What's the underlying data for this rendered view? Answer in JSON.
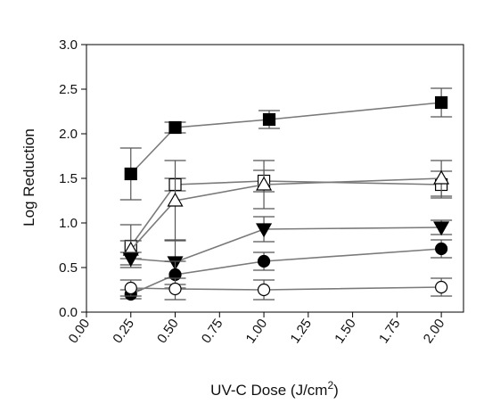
{
  "chart_data": {
    "type": "line",
    "title": "",
    "xlabel": {
      "main": "UV-C Dose (J/cm",
      "sup": "2",
      "close": ")"
    },
    "ylabel": "Log Reduction",
    "xlim": [
      0,
      2.125
    ],
    "ylim": [
      0,
      3.0
    ],
    "xticks": [
      "0.00",
      "0.25",
      "0.50",
      "0.75",
      "1.00",
      "1.25",
      "1.50",
      "1.75",
      "2.00"
    ],
    "yticks": [
      "0.0",
      "0.5",
      "1.0",
      "1.5",
      "2.0",
      "2.5",
      "3.0"
    ],
    "grid": false,
    "legend": "none",
    "series": [
      {
        "marker": "filled-square",
        "points": [
          {
            "x": 0.25,
            "y": 1.55,
            "err": 0.29
          },
          {
            "x": 0.5,
            "y": 2.07,
            "err": 0.06
          },
          {
            "x": 1.03,
            "y": 2.16,
            "err": 0.1
          },
          {
            "x": 2.0,
            "y": 2.35,
            "err": 0.16
          }
        ]
      },
      {
        "marker": "open-square",
        "points": [
          {
            "x": 0.25,
            "y": 0.74,
            "err": 0.24
          },
          {
            "x": 0.5,
            "y": 1.43,
            "err": 0.07
          },
          {
            "x": 1.0,
            "y": 1.47,
            "err": 0.12
          },
          {
            "x": 2.0,
            "y": 1.43,
            "err": 0.15
          }
        ]
      },
      {
        "marker": "open-triangle",
        "points": [
          {
            "x": 0.25,
            "y": 0.7,
            "err": 0.1
          },
          {
            "x": 0.5,
            "y": 1.25,
            "err": 0.45
          },
          {
            "x": 1.0,
            "y": 1.43,
            "err": 0.27
          },
          {
            "x": 2.0,
            "y": 1.5,
            "err": 0.2
          }
        ]
      },
      {
        "marker": "filled-triangle-down",
        "points": [
          {
            "x": 0.25,
            "y": 0.6,
            "err": 0.07
          },
          {
            "x": 0.5,
            "y": 0.56,
            "err": 0.25
          },
          {
            "x": 1.0,
            "y": 0.93,
            "err": 0.14
          },
          {
            "x": 2.0,
            "y": 0.95,
            "err": 0.08
          }
        ]
      },
      {
        "marker": "filled-circle",
        "points": [
          {
            "x": 0.25,
            "y": 0.2,
            "err": 0.05
          },
          {
            "x": 0.5,
            "y": 0.42,
            "err": 0.15
          },
          {
            "x": 1.0,
            "y": 0.57,
            "err": 0.1
          },
          {
            "x": 2.0,
            "y": 0.71,
            "err": 0.1
          }
        ]
      },
      {
        "marker": "open-circle",
        "points": [
          {
            "x": 0.25,
            "y": 0.27,
            "err": 0.09
          },
          {
            "x": 0.5,
            "y": 0.26,
            "err": 0.12
          },
          {
            "x": 1.0,
            "y": 0.25,
            "err": 0.11
          },
          {
            "x": 2.0,
            "y": 0.28,
            "err": 0.1
          }
        ]
      }
    ],
    "colors": {
      "line": "#7a7a7a",
      "marker": "#000000",
      "axis": "#000000"
    }
  }
}
